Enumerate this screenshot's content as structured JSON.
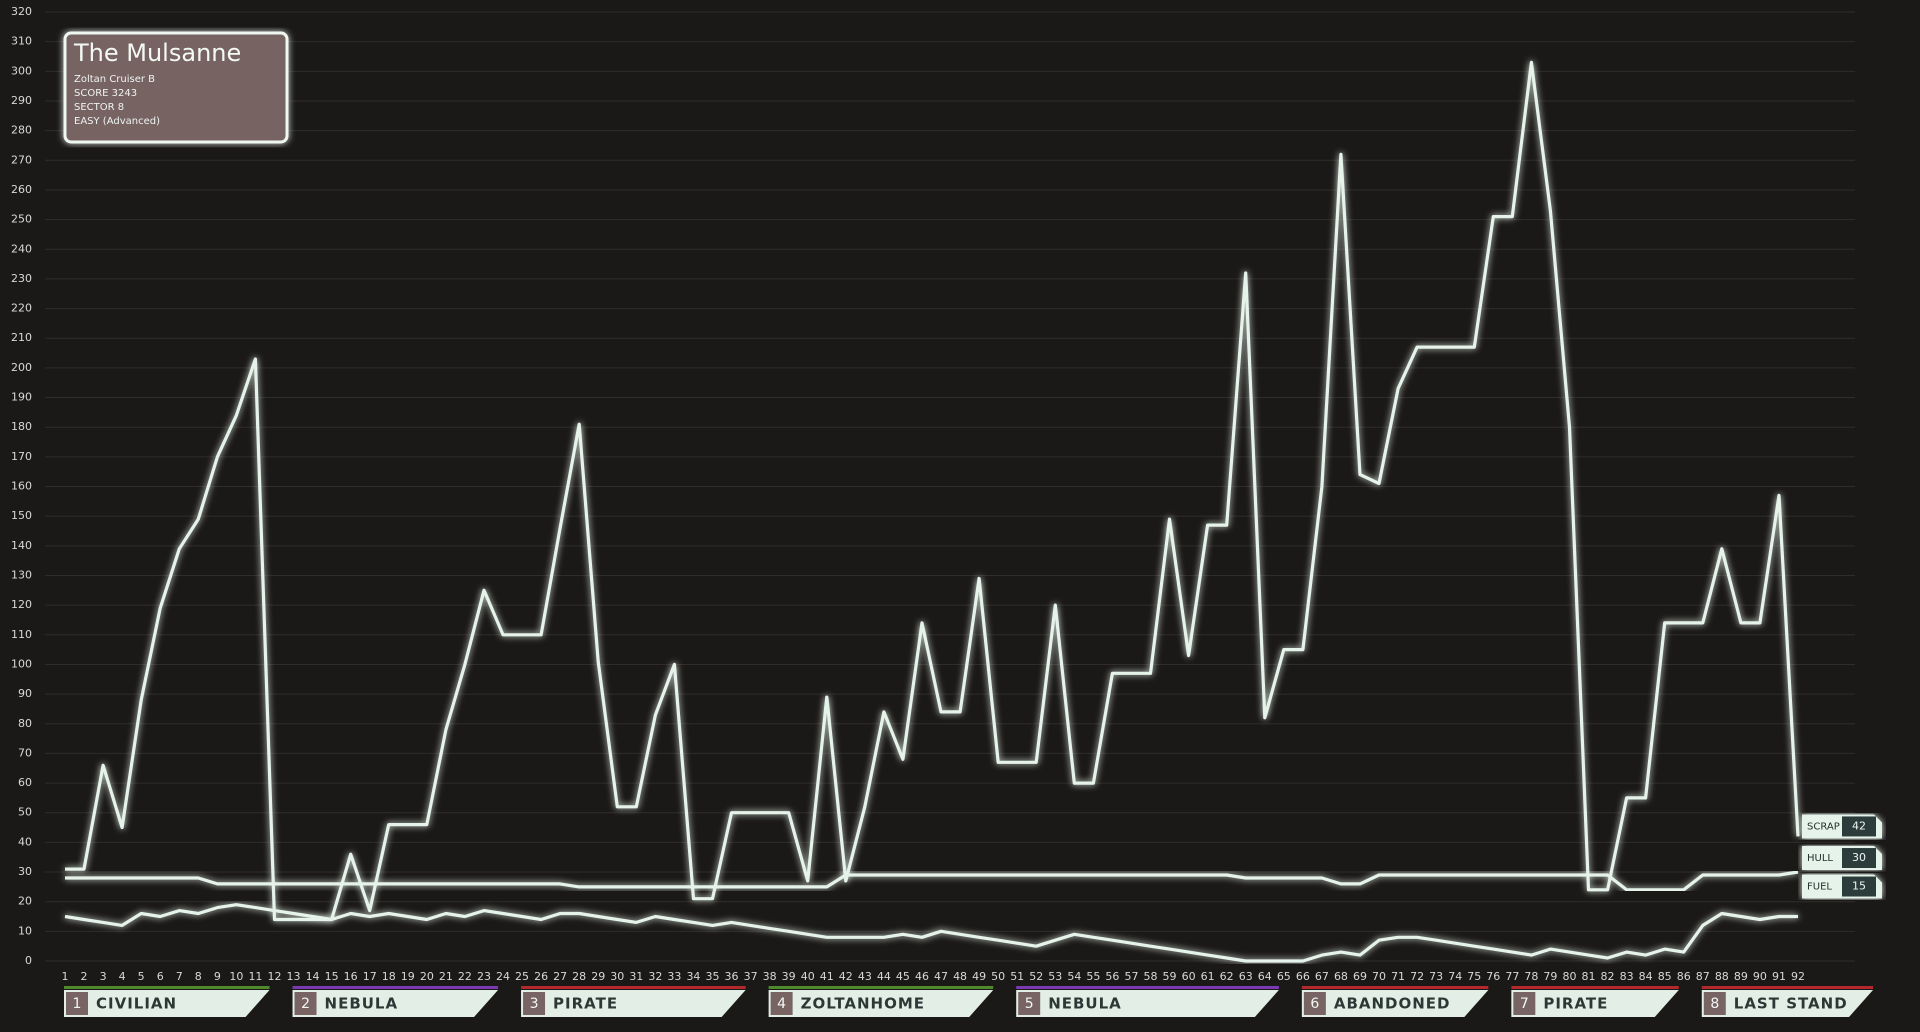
{
  "chart_data": {
    "type": "line",
    "info": {
      "title": "The Mulsanne",
      "lines": [
        "Zoltan Cruiser B",
        "SCORE  3243",
        "SECTOR 8",
        "EASY (Advanced)"
      ]
    },
    "x": [
      1,
      2,
      3,
      4,
      5,
      6,
      7,
      8,
      9,
      10,
      11,
      12,
      13,
      14,
      15,
      16,
      17,
      18,
      19,
      20,
      21,
      22,
      23,
      24,
      25,
      26,
      27,
      28,
      29,
      30,
      31,
      32,
      33,
      34,
      35,
      36,
      37,
      38,
      39,
      40,
      41,
      42,
      43,
      44,
      45,
      46,
      47,
      48,
      49,
      50,
      51,
      52,
      53,
      54,
      55,
      56,
      57,
      58,
      59,
      60,
      61,
      62,
      63,
      64,
      65,
      66,
      67,
      68,
      69,
      70,
      71,
      72,
      73,
      74,
      75,
      76,
      77,
      78,
      79,
      80,
      81,
      82,
      83,
      84,
      85,
      86,
      87,
      88,
      89,
      90,
      91,
      92
    ],
    "xlim": [
      1,
      92
    ],
    "ylim": [
      0,
      320
    ],
    "yticks": [
      0,
      10,
      20,
      30,
      40,
      50,
      60,
      70,
      80,
      90,
      100,
      110,
      120,
      130,
      140,
      150,
      160,
      170,
      180,
      190,
      200,
      210,
      220,
      230,
      240,
      250,
      260,
      270,
      280,
      290,
      300,
      310,
      320
    ],
    "grid": true,
    "series": [
      {
        "name": "SCRAP",
        "color": "#e6f3ea",
        "values": [
          31,
          31,
          66,
          45,
          88,
          119,
          139,
          149,
          170,
          184,
          203,
          14,
          14,
          14,
          14,
          36,
          17,
          46,
          46,
          46,
          78,
          100,
          125,
          110,
          110,
          110,
          146,
          181,
          101,
          52,
          52,
          83,
          100,
          21,
          21,
          50,
          50,
          50,
          50,
          27,
          89,
          27,
          52,
          84,
          68,
          114,
          84,
          84,
          129,
          67,
          67,
          67,
          120,
          60,
          60,
          97,
          97,
          97,
          149,
          103,
          147,
          147,
          232,
          82,
          105,
          105,
          160,
          272,
          164,
          161,
          193,
          207,
          207,
          207,
          207,
          251,
          251,
          303,
          253,
          180,
          24,
          24,
          55,
          55,
          114,
          114,
          114,
          139,
          114,
          114,
          157,
          42
        ]
      },
      {
        "name": "HULL",
        "color": "#e6f3ea",
        "values": [
          28,
          28,
          28,
          28,
          28,
          28,
          28,
          28,
          26,
          26,
          26,
          26,
          26,
          26,
          26,
          26,
          26,
          26,
          26,
          26,
          26,
          26,
          26,
          26,
          26,
          26,
          26,
          25,
          25,
          25,
          25,
          25,
          25,
          25,
          25,
          25,
          25,
          25,
          25,
          25,
          25,
          29,
          29,
          29,
          29,
          29,
          29,
          29,
          29,
          29,
          29,
          29,
          29,
          29,
          29,
          29,
          29,
          29,
          29,
          29,
          29,
          29,
          28,
          28,
          28,
          28,
          28,
          26,
          26,
          29,
          29,
          29,
          29,
          29,
          29,
          29,
          29,
          29,
          29,
          29,
          29,
          29,
          24,
          24,
          24,
          24,
          29,
          29,
          29,
          29,
          29,
          30
        ]
      },
      {
        "name": "FUEL",
        "color": "#e6f3ea",
        "values": [
          15,
          14,
          13,
          12,
          16,
          15,
          17,
          16,
          18,
          19,
          18,
          17,
          16,
          15,
          14,
          16,
          15,
          16,
          15,
          14,
          16,
          15,
          17,
          16,
          15,
          14,
          16,
          16,
          15,
          14,
          13,
          15,
          14,
          13,
          12,
          13,
          12,
          11,
          10,
          9,
          8,
          8,
          8,
          8,
          9,
          8,
          10,
          9,
          8,
          7,
          6,
          5,
          7,
          9,
          8,
          7,
          6,
          5,
          4,
          3,
          2,
          1,
          0,
          0,
          0,
          0,
          2,
          3,
          2,
          7,
          8,
          8,
          7,
          6,
          5,
          4,
          3,
          2,
          4,
          3,
          2,
          1,
          3,
          2,
          4,
          3,
          12,
          16,
          15,
          14,
          15,
          15
        ]
      }
    ],
    "sectors": [
      {
        "number": 1,
        "name": "CIVILIAN",
        "color": "#4e8a2c",
        "start": 1
      },
      {
        "number": 2,
        "name": "NEBULA",
        "color": "#7b3ab2",
        "start": 13
      },
      {
        "number": 3,
        "name": "PIRATE",
        "color": "#b3282a",
        "start": 25
      },
      {
        "number": 4,
        "name": "ZOLTANHOME",
        "color": "#4e8a2c",
        "start": 38
      },
      {
        "number": 5,
        "name": "NEBULA",
        "color": "#7b3ab2",
        "start": 51
      },
      {
        "number": 6,
        "name": "ABANDONED",
        "color": "#b3282a",
        "start": 66
      },
      {
        "number": 7,
        "name": "PIRATE",
        "color": "#b3282a",
        "start": 77
      },
      {
        "number": 8,
        "name": "LAST STAND",
        "color": "#b3282a",
        "start": 87
      }
    ]
  }
}
